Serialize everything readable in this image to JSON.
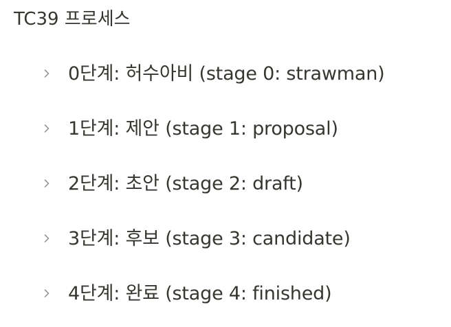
{
  "heading": "TC39 프로세스",
  "items": [
    {
      "label": "0단계: 허수아비 (stage 0: strawman)",
      "icon": "chevron-right-icon"
    },
    {
      "label": "1단계: 제안 (stage 1: proposal)",
      "icon": "chevron-right-icon"
    },
    {
      "label": "2단계: 초안 (stage 2: draft)",
      "icon": "chevron-right-icon"
    },
    {
      "label": "3단계: 후보 (stage 3: candidate)",
      "icon": "chevron-right-icon"
    },
    {
      "label": "4단계: 완료 (stage 4: finished)",
      "icon": "chevron-right-icon"
    }
  ],
  "colors": {
    "text": "#37352f",
    "icon": "#9b9a97",
    "background": "#ffffff"
  }
}
